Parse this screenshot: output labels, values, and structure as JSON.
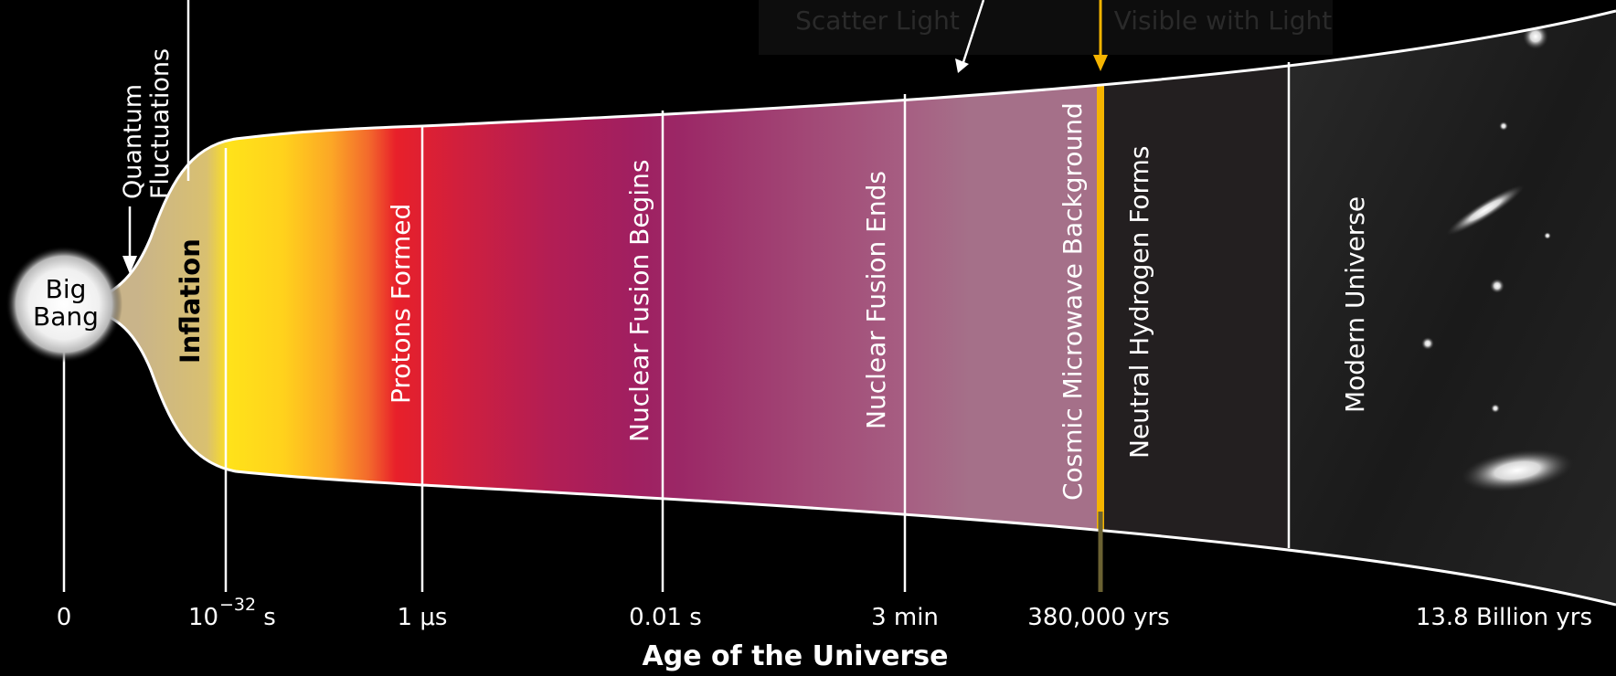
{
  "top_notes": {
    "left": "Scatter Light",
    "right": "Visible with Light"
  },
  "big_bang": {
    "line1": "Big",
    "line2": "Bang"
  },
  "quantum": {
    "line1": "Quantum",
    "line2": "Fluctuations"
  },
  "eras": {
    "inflation": "Inflation",
    "protons": "Protons Formed",
    "fusion_begins": "Nuclear Fusion Begins",
    "fusion_ends": "Nuclear Fusion Ends",
    "cmb": "Cosmic Microwave Background",
    "neutral_h": "Neutral Hydrogen Forms",
    "modern": "Modern Universe"
  },
  "ticks": {
    "t0": "0",
    "t1_base": "10",
    "t1_exp": "−32",
    "t1_unit": " s",
    "t2": "1 μs",
    "t3": "0.01 s",
    "t4": "3 min",
    "t5": "380,000 yrs",
    "t6": "13.8 Billion yrs"
  },
  "axis_title": "Age of the Universe",
  "colors": {
    "background": "#000000",
    "inflation": "#c9b48a",
    "yellow": "#ffe21a",
    "red": "#e8202a",
    "magenta": "#9e1f63",
    "mauve": "#a47290",
    "cmb_line": "#f5b400",
    "dark_era": "#231f20"
  }
}
